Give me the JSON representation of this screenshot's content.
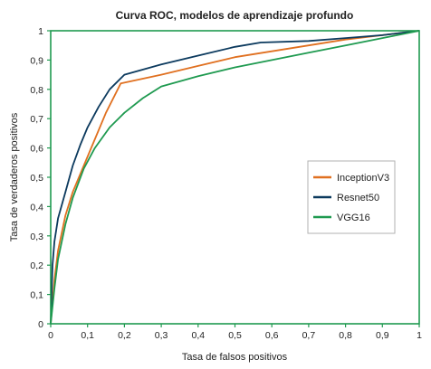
{
  "chart_data": {
    "type": "line",
    "title": "Curva ROC, modelos de aprendizaje profundo",
    "xlabel": "Tasa de falsos positivos",
    "ylabel": "Tasa de verdaderos positivos",
    "xlim": [
      0,
      1
    ],
    "ylim": [
      0,
      1
    ],
    "xticks": [
      "0",
      "0,1",
      "0,2",
      "0,3",
      "0,4",
      "0,5",
      "0,6",
      "0,7",
      "0,8",
      "0,9",
      "1"
    ],
    "yticks": [
      "0",
      "0,1",
      "0,2",
      "0,3",
      "0,4",
      "0,5",
      "0,6",
      "0,7",
      "0,8",
      "0,9",
      "1"
    ],
    "grid": false,
    "legend_position": "center-right",
    "series": [
      {
        "name": "InceptionV3",
        "color": "#e07020",
        "points": [
          [
            0,
            0
          ],
          [
            0.01,
            0.15
          ],
          [
            0.02,
            0.25
          ],
          [
            0.04,
            0.37
          ],
          [
            0.06,
            0.45
          ],
          [
            0.09,
            0.54
          ],
          [
            0.12,
            0.63
          ],
          [
            0.15,
            0.72
          ],
          [
            0.19,
            0.82
          ],
          [
            0.3,
            0.85
          ],
          [
            0.4,
            0.88
          ],
          [
            0.5,
            0.91
          ],
          [
            0.6,
            0.93
          ],
          [
            0.7,
            0.95
          ],
          [
            0.8,
            0.97
          ],
          [
            0.9,
            0.985
          ],
          [
            1,
            1
          ]
        ]
      },
      {
        "name": "Resnet50",
        "color": "#0c3a5e",
        "points": [
          [
            0,
            0
          ],
          [
            0.005,
            0.2
          ],
          [
            0.01,
            0.28
          ],
          [
            0.02,
            0.36
          ],
          [
            0.04,
            0.45
          ],
          [
            0.06,
            0.54
          ],
          [
            0.08,
            0.61
          ],
          [
            0.1,
            0.67
          ],
          [
            0.13,
            0.74
          ],
          [
            0.16,
            0.8
          ],
          [
            0.2,
            0.85
          ],
          [
            0.3,
            0.885
          ],
          [
            0.4,
            0.915
          ],
          [
            0.5,
            0.945
          ],
          [
            0.57,
            0.96
          ],
          [
            0.7,
            0.965
          ],
          [
            0.8,
            0.975
          ],
          [
            0.9,
            0.985
          ],
          [
            1,
            1
          ]
        ]
      },
      {
        "name": "VGG16",
        "color": "#1f9a50",
        "points": [
          [
            0,
            0
          ],
          [
            0.01,
            0.12
          ],
          [
            0.02,
            0.22
          ],
          [
            0.04,
            0.34
          ],
          [
            0.06,
            0.43
          ],
          [
            0.09,
            0.53
          ],
          [
            0.12,
            0.6
          ],
          [
            0.16,
            0.67
          ],
          [
            0.2,
            0.72
          ],
          [
            0.25,
            0.77
          ],
          [
            0.3,
            0.81
          ],
          [
            0.4,
            0.845
          ],
          [
            0.5,
            0.875
          ],
          [
            0.6,
            0.9
          ],
          [
            0.7,
            0.925
          ],
          [
            0.8,
            0.95
          ],
          [
            0.9,
            0.975
          ],
          [
            1,
            1
          ]
        ]
      }
    ]
  }
}
